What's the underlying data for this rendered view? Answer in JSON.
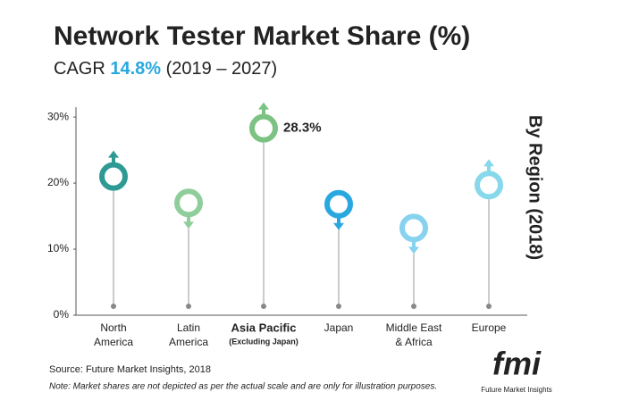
{
  "chart_data": {
    "type": "lollipop-arrow",
    "title": "Network Tester Market Share (%)",
    "subtitle": {
      "lead": "CAGR",
      "cagr": "14.8%",
      "period": "(2019 – 2027)"
    },
    "side_label": "By Region (2018)",
    "categories": [
      [
        "North",
        "America"
      ],
      [
        "Latin",
        "America"
      ],
      [
        "Asia Pacific",
        "(Excluding Japan)"
      ],
      [
        "Japan"
      ],
      [
        "Middle East",
        "& Africa"
      ],
      [
        "Europe"
      ]
    ],
    "values": [
      21,
      17,
      28.3,
      16.8,
      13.2,
      19.7
    ],
    "value_labels": [
      null,
      null,
      "28.3%",
      null,
      null,
      null
    ],
    "arrows": [
      "up",
      "down",
      "up",
      "down",
      "down",
      "up"
    ],
    "colors": [
      "#2e9a94",
      "#8fce9a",
      "#7cc383",
      "#29a8e0",
      "#86d2ef",
      "#86d8ea"
    ],
    "ylim": [
      0,
      31.5
    ],
    "yticks": [
      {
        "value": 0,
        "label": "0%"
      },
      {
        "value": 10,
        "label": "10%"
      },
      {
        "value": 20,
        "label": "20%"
      },
      {
        "value": 30,
        "label": "30%"
      }
    ],
    "source": "Source: Future Market Insights, 2018",
    "note": "Note: Market shares are not depicted as per the actual scale and are only for illustration purposes."
  },
  "logo": {
    "mark": "fmi",
    "name": "Future Market Insights"
  }
}
